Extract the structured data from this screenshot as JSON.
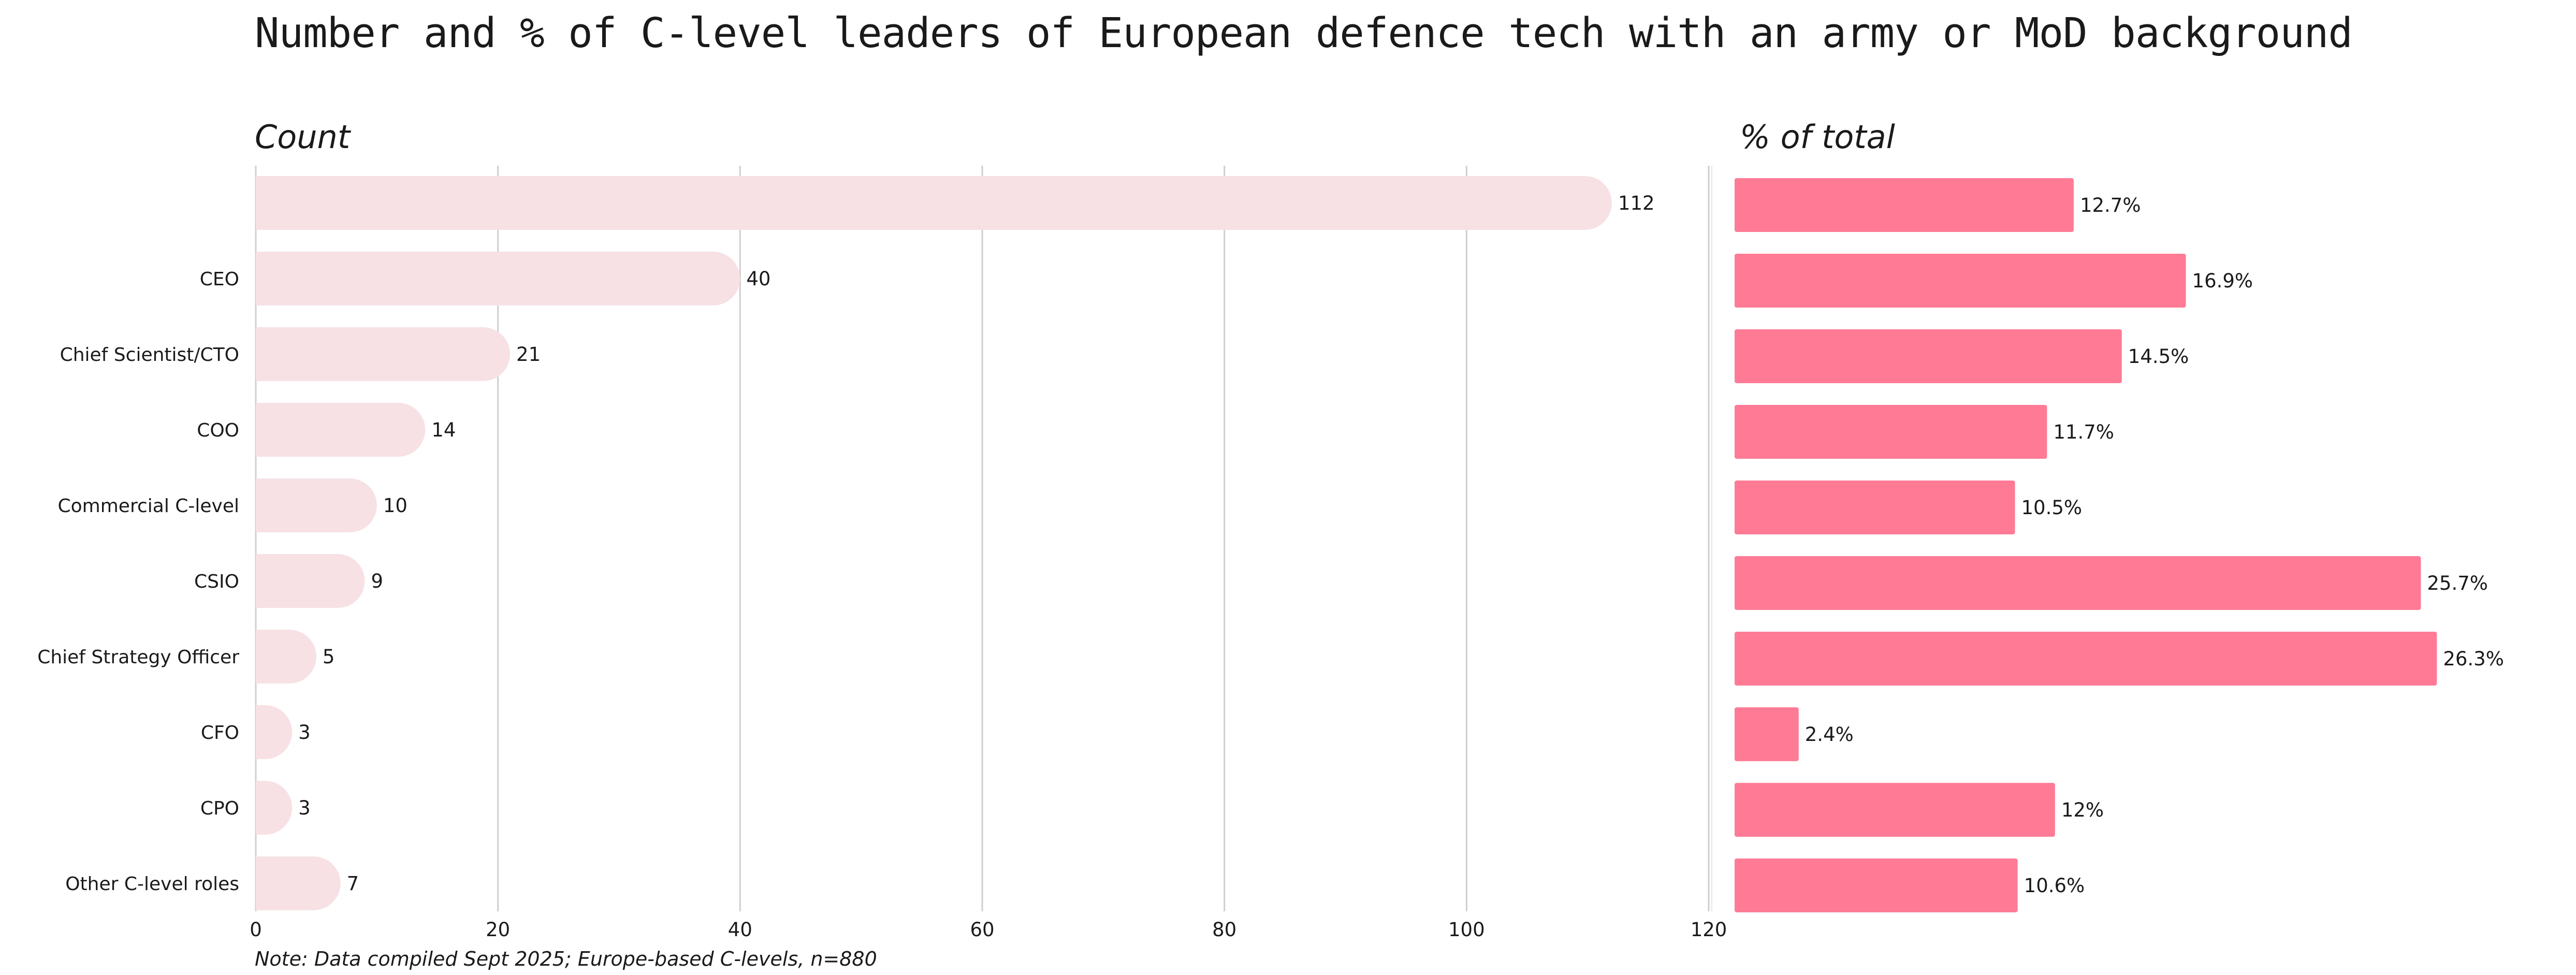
{
  "chart_data": {
    "type": "bar",
    "title": "Number and % of C-level leaders of European defence tech with an army or MoD background",
    "note": "Note: Data compiled Sept 2025; Europe-based C-levels, n=880",
    "categories": [
      "",
      "CEO",
      "Chief Scientist/CTO",
      "COO",
      "Commercial C-level",
      "CSIO",
      "Chief Strategy Officer",
      "CFO",
      "CPO",
      "Other C-level roles"
    ],
    "panels": [
      {
        "name": "Count",
        "label": "Count",
        "values": [
          112,
          40,
          21,
          14,
          10,
          9,
          5,
          3,
          3,
          7
        ],
        "value_labels": [
          "112",
          "40",
          "21",
          "14",
          "10",
          "9",
          "5",
          "3",
          "3",
          "7"
        ],
        "xlim": [
          0,
          120
        ],
        "ticks": [
          0,
          20,
          40,
          60,
          80,
          100,
          120
        ],
        "tick_labels": [
          "0",
          "20",
          "40",
          "60",
          "80",
          "100",
          "120"
        ],
        "grid": true,
        "color": "#f7e1e5"
      },
      {
        "name": "% of total",
        "label": "% of total",
        "values": [
          12.7,
          16.9,
          14.5,
          11.7,
          10.5,
          25.7,
          26.3,
          2.4,
          12,
          10.6
        ],
        "value_labels": [
          "12.7%",
          "16.9%",
          "14.5%",
          "11.7%",
          "10.5%",
          "25.7%",
          "26.3%",
          "2.4%",
          "12%",
          "10.6%"
        ],
        "xlim": [
          0,
          28
        ],
        "grid": false,
        "color": "#ff7b95"
      }
    ]
  }
}
